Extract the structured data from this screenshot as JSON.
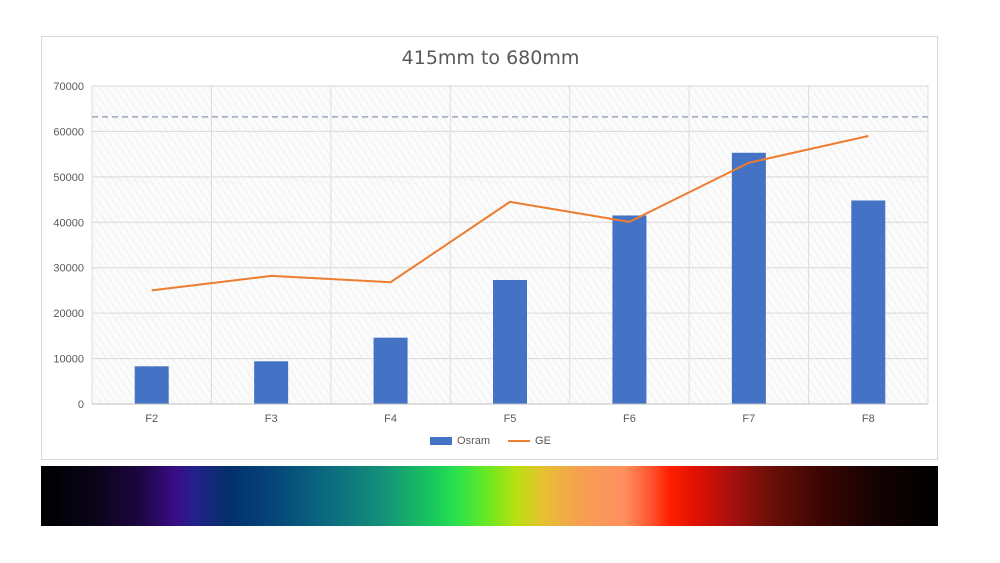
{
  "chart_data": {
    "type": "bar",
    "title": "415mm to 680mm",
    "categories": [
      "F2",
      "F3",
      "F4",
      "F5",
      "F6",
      "F7",
      "F8"
    ],
    "series": [
      {
        "name": "Osram",
        "type": "bar",
        "color": "#4472c4",
        "values": [
          8300,
          9400,
          14600,
          27300,
          41500,
          55300,
          44800
        ]
      },
      {
        "name": "GE",
        "type": "line",
        "color": "#ed7d31",
        "values": [
          25000,
          28200,
          26800,
          44500,
          40100,
          53100,
          59000
        ]
      }
    ],
    "reference_line": {
      "value": 63200,
      "color": "#8497b0",
      "style": "dashed"
    },
    "ylim": [
      0,
      70000
    ],
    "yticks": [
      0,
      10000,
      20000,
      30000,
      40000,
      50000,
      60000,
      70000
    ],
    "xlabel": "",
    "ylabel": "",
    "grid": true,
    "legend": "bottom-center"
  },
  "spectrum_strip": {
    "description_colors": [
      "#000000",
      "#3a0c88",
      "#05467a",
      "#24e050",
      "#e8c030",
      "#ff2000",
      "#000000"
    ]
  }
}
